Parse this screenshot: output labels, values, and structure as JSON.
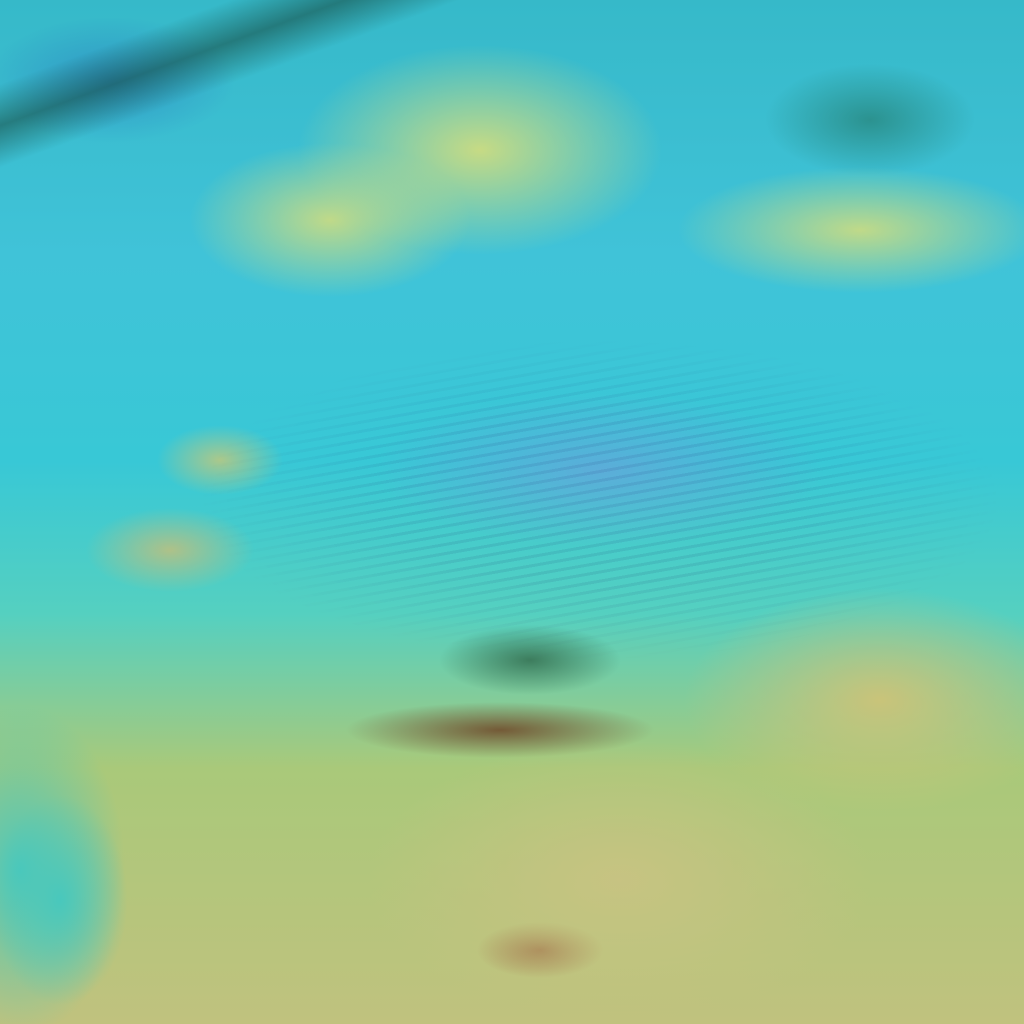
{
  "image": {
    "kind": "false-color satellite cloud imagery",
    "palette": {
      "ocean": "#3fc9bf",
      "low_cloud_cyan": "#40c3d8",
      "high_cloud_yellow": "#ced c80",
      "dark_streaks": "#6e4628",
      "cloud_texture_blue": "#7896dc"
    }
  }
}
